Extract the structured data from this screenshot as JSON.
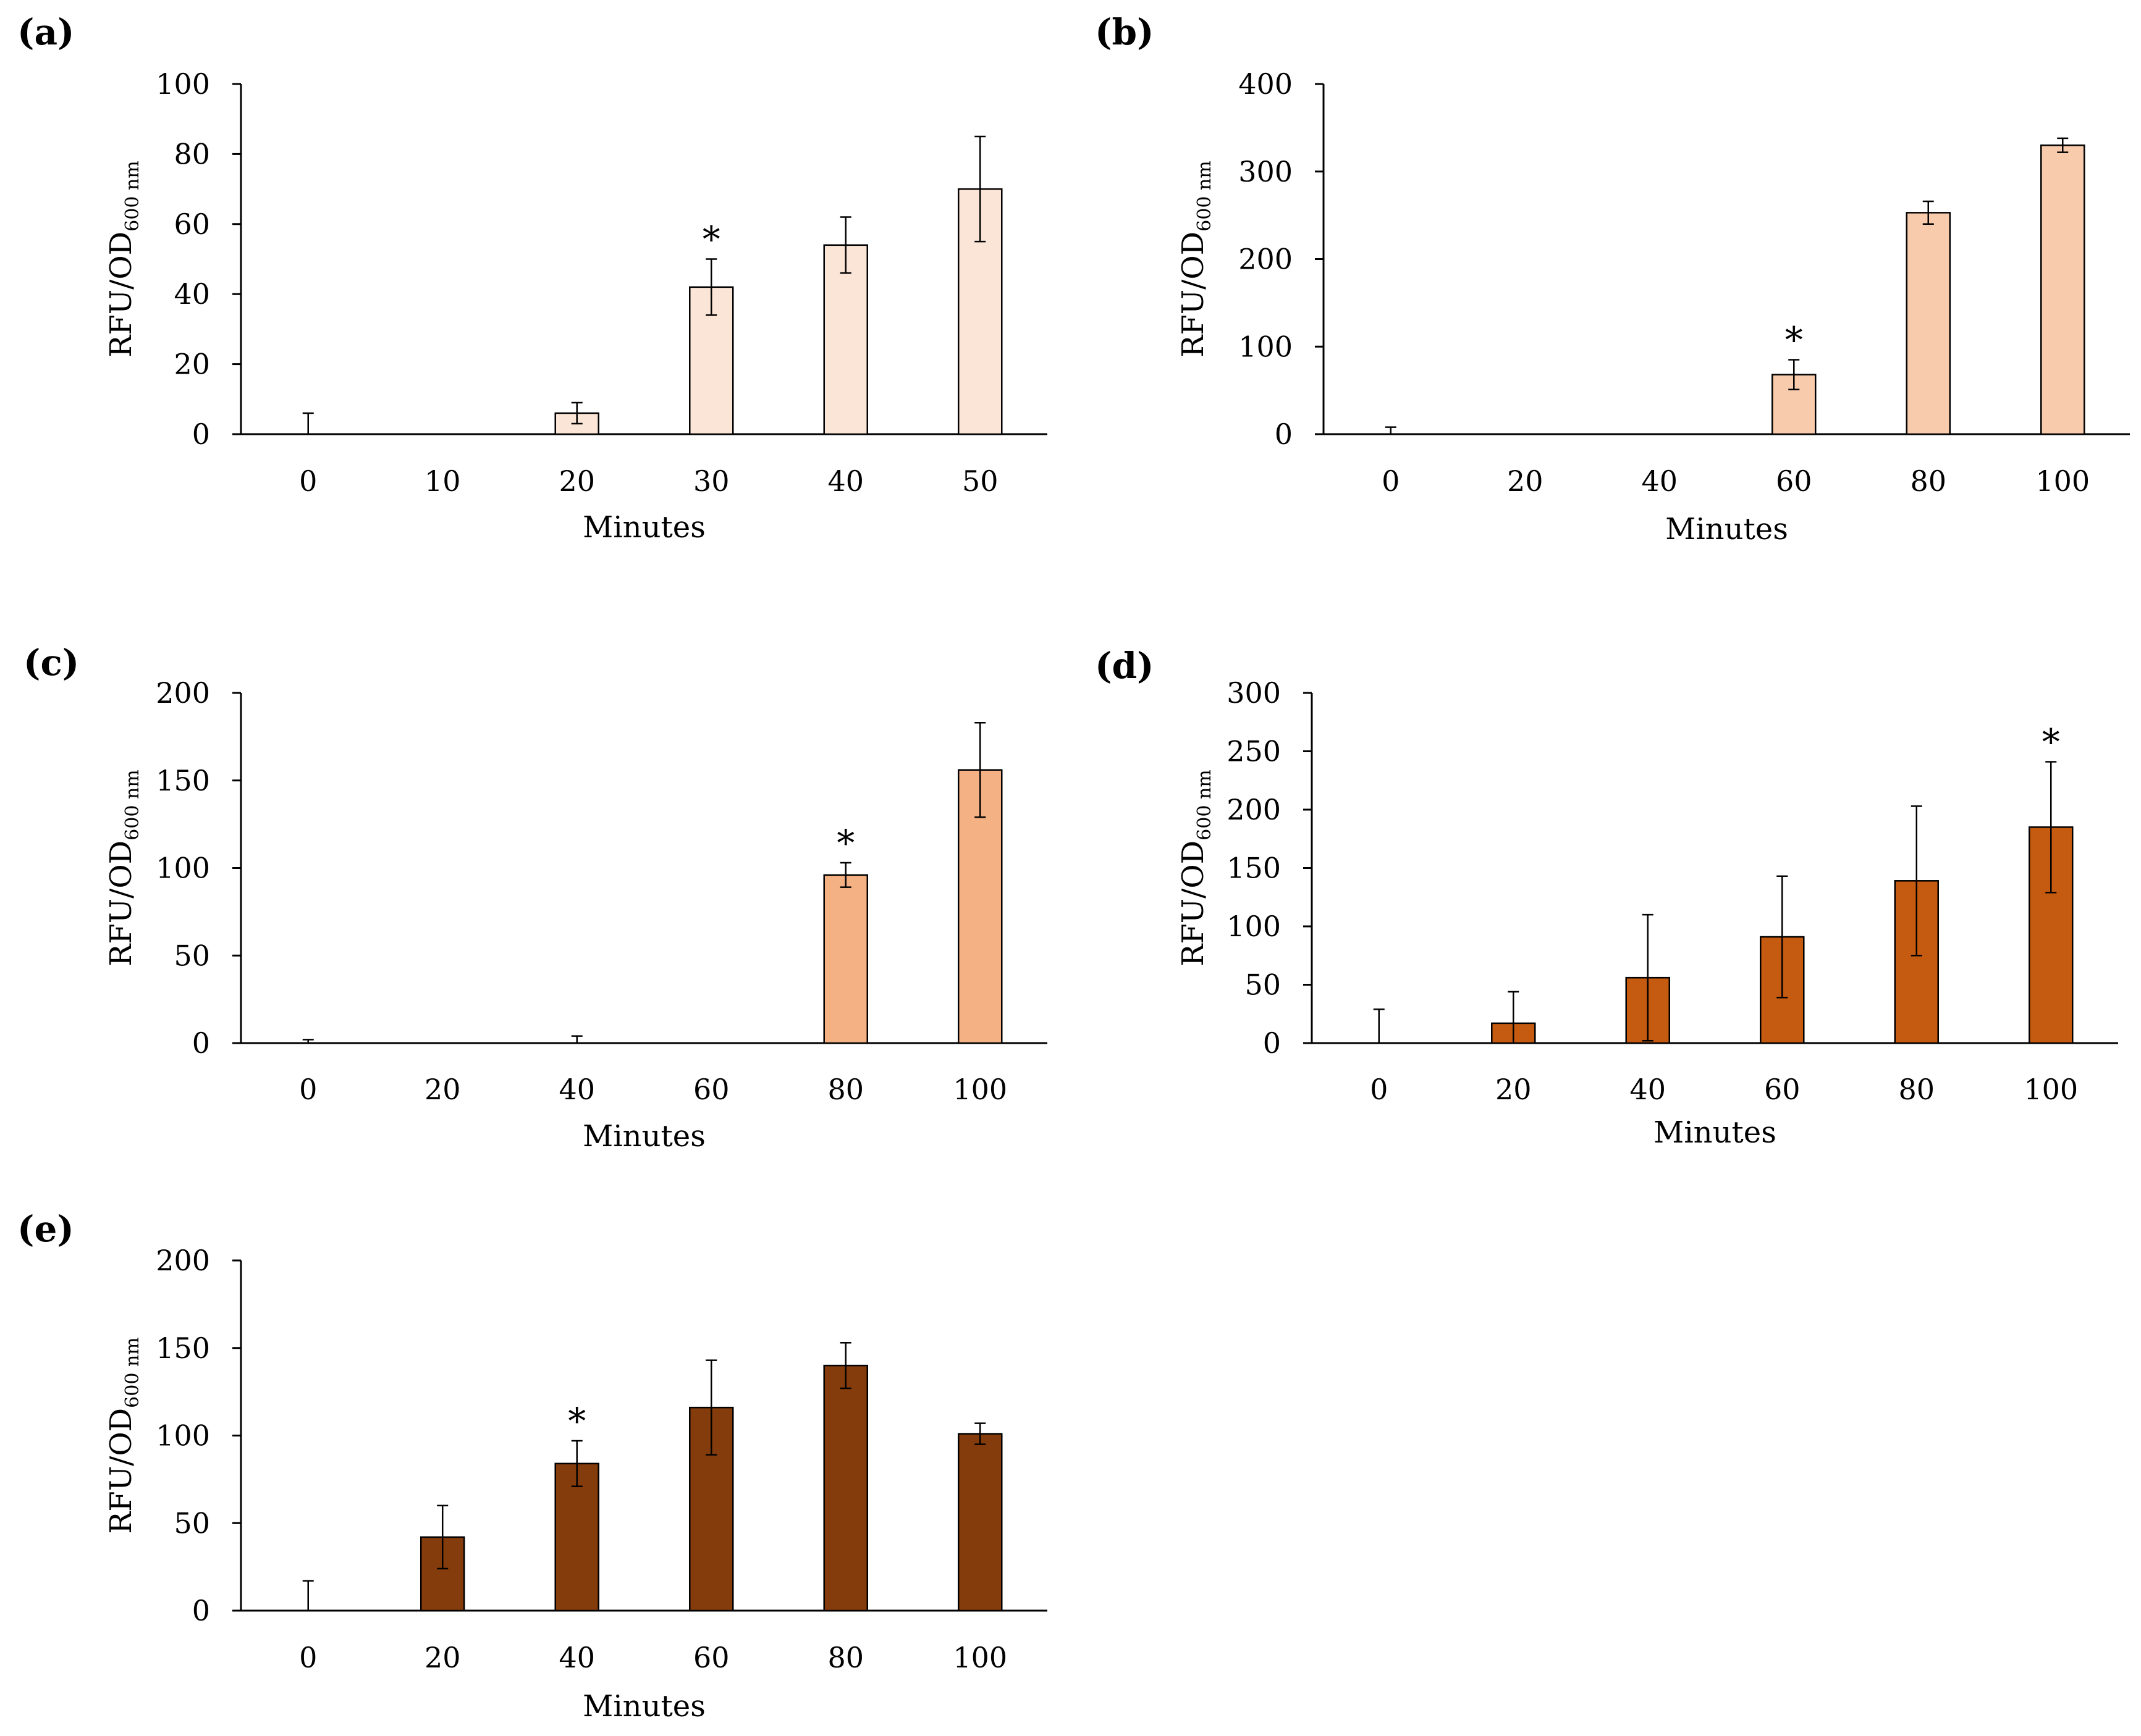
{
  "chart_data": [
    {
      "panel": "(a)",
      "type": "bar",
      "categories": [
        "0",
        "10",
        "20",
        "30",
        "40",
        "50"
      ],
      "values": [
        0,
        0,
        6,
        42,
        54,
        70
      ],
      "errors": [
        6,
        0,
        3,
        8,
        8,
        15
      ],
      "ylim": [
        0,
        100
      ],
      "yticks": [
        "0",
        "20",
        "40",
        "60",
        "80",
        "100"
      ],
      "ylabel_main": "RFU/OD",
      "ylabel_sub": "600 nm",
      "xlabel": "Minutes",
      "significance": [
        {
          "index": 3,
          "marker": "*"
        }
      ],
      "color": "#fbe5d6"
    },
    {
      "panel": "(b)",
      "type": "bar",
      "categories": [
        "0",
        "20",
        "40",
        "60",
        "80",
        "100"
      ],
      "values": [
        0,
        0,
        0,
        68,
        253,
        330
      ],
      "errors": [
        8,
        0,
        0,
        17,
        13,
        8
      ],
      "ylim": [
        0,
        400
      ],
      "yticks": [
        "0",
        "100",
        "200",
        "300",
        "400"
      ],
      "ylabel_main": "RFU/OD",
      "ylabel_sub": "600 nm",
      "xlabel": "Minutes",
      "significance": [
        {
          "index": 3,
          "marker": "*"
        }
      ],
      "color": "#f8cbad"
    },
    {
      "panel": "(c)",
      "type": "bar",
      "categories": [
        "0",
        "20",
        "40",
        "60",
        "80",
        "100"
      ],
      "values": [
        0,
        0,
        0,
        0,
        96,
        156
      ],
      "errors": [
        2,
        0,
        4,
        0,
        7,
        27
      ],
      "ylim": [
        0,
        200
      ],
      "yticks": [
        "0",
        "50",
        "100",
        "150",
        "200"
      ],
      "ylabel_main": "RFU/OD",
      "ylabel_sub": "600 nm",
      "xlabel": "Minutes",
      "significance": [
        {
          "index": 4,
          "marker": "*"
        }
      ],
      "color": "#f4b183"
    },
    {
      "panel": "(d)",
      "type": "bar",
      "categories": [
        "0",
        "20",
        "40",
        "60",
        "80",
        "100"
      ],
      "values": [
        0,
        17,
        56,
        91,
        139,
        185
      ],
      "errors": [
        29,
        27,
        54,
        52,
        64,
        56
      ],
      "ylim": [
        0,
        300
      ],
      "yticks": [
        "0",
        "50",
        "100",
        "150",
        "200",
        "250",
        "300"
      ],
      "ylabel_main": "RFU/OD",
      "ylabel_sub": "600 nm",
      "xlabel": "Minutes",
      "significance": [
        {
          "index": 5,
          "marker": "*"
        }
      ],
      "color": "#c55a11"
    },
    {
      "panel": "(e)",
      "type": "bar",
      "categories": [
        "0",
        "20",
        "40",
        "60",
        "80",
        "100"
      ],
      "values": [
        0,
        42,
        84,
        116,
        140,
        101
      ],
      "errors": [
        17,
        18,
        13,
        27,
        13,
        6
      ],
      "ylim": [
        0,
        200
      ],
      "yticks": [
        "0",
        "50",
        "100",
        "150",
        "200"
      ],
      "ylabel_main": "RFU/OD",
      "ylabel_sub": "600 nm",
      "xlabel": "Minutes",
      "significance": [
        {
          "index": 2,
          "marker": "*"
        }
      ],
      "color": "#843c0c"
    }
  ]
}
